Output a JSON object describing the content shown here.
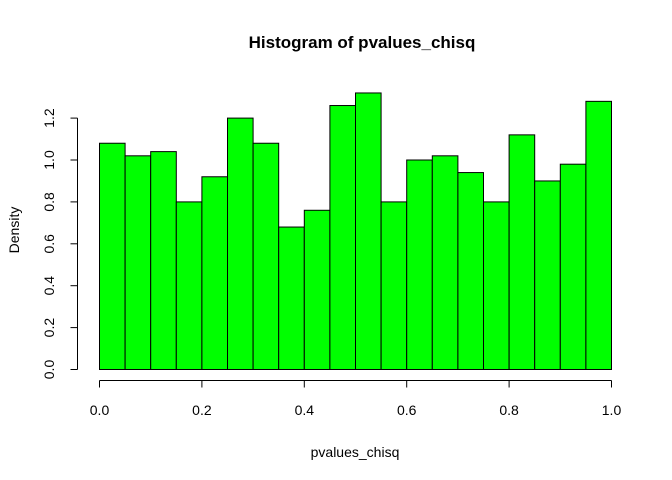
{
  "chart_data": {
    "type": "bar",
    "title": "Histogram of pvalues_chisq",
    "xlabel": "pvalues_chisq",
    "ylabel": "Density",
    "bin_edges": [
      0.0,
      0.05,
      0.1,
      0.15,
      0.2,
      0.25,
      0.3,
      0.35,
      0.4,
      0.45,
      0.5,
      0.55,
      0.6,
      0.65,
      0.7,
      0.75,
      0.8,
      0.85,
      0.9,
      0.95,
      1.0
    ],
    "values": [
      1.08,
      1.02,
      1.04,
      0.8,
      0.92,
      1.2,
      1.08,
      0.68,
      0.76,
      1.26,
      1.32,
      0.8,
      1.0,
      1.02,
      0.94,
      0.8,
      1.12,
      0.9,
      0.98,
      1.28
    ],
    "xlim": [
      0.0,
      1.0
    ],
    "ylim": [
      0.0,
      1.2
    ],
    "x_ticks": [
      0.0,
      0.2,
      0.4,
      0.6,
      0.8,
      1.0
    ],
    "x_tick_labels": [
      "0.0",
      "0.2",
      "0.4",
      "0.6",
      "0.8",
      "1.0"
    ],
    "y_ticks": [
      0.0,
      0.2,
      0.4,
      0.6,
      0.8,
      1.0,
      1.2
    ],
    "y_tick_labels": [
      "0.0",
      "0.2",
      "0.4",
      "0.6",
      "0.8",
      "1.0",
      "1.2"
    ],
    "bar_color": "#00ff00",
    "bar_edge_color": "#000000",
    "grid": false,
    "legend": "none"
  }
}
